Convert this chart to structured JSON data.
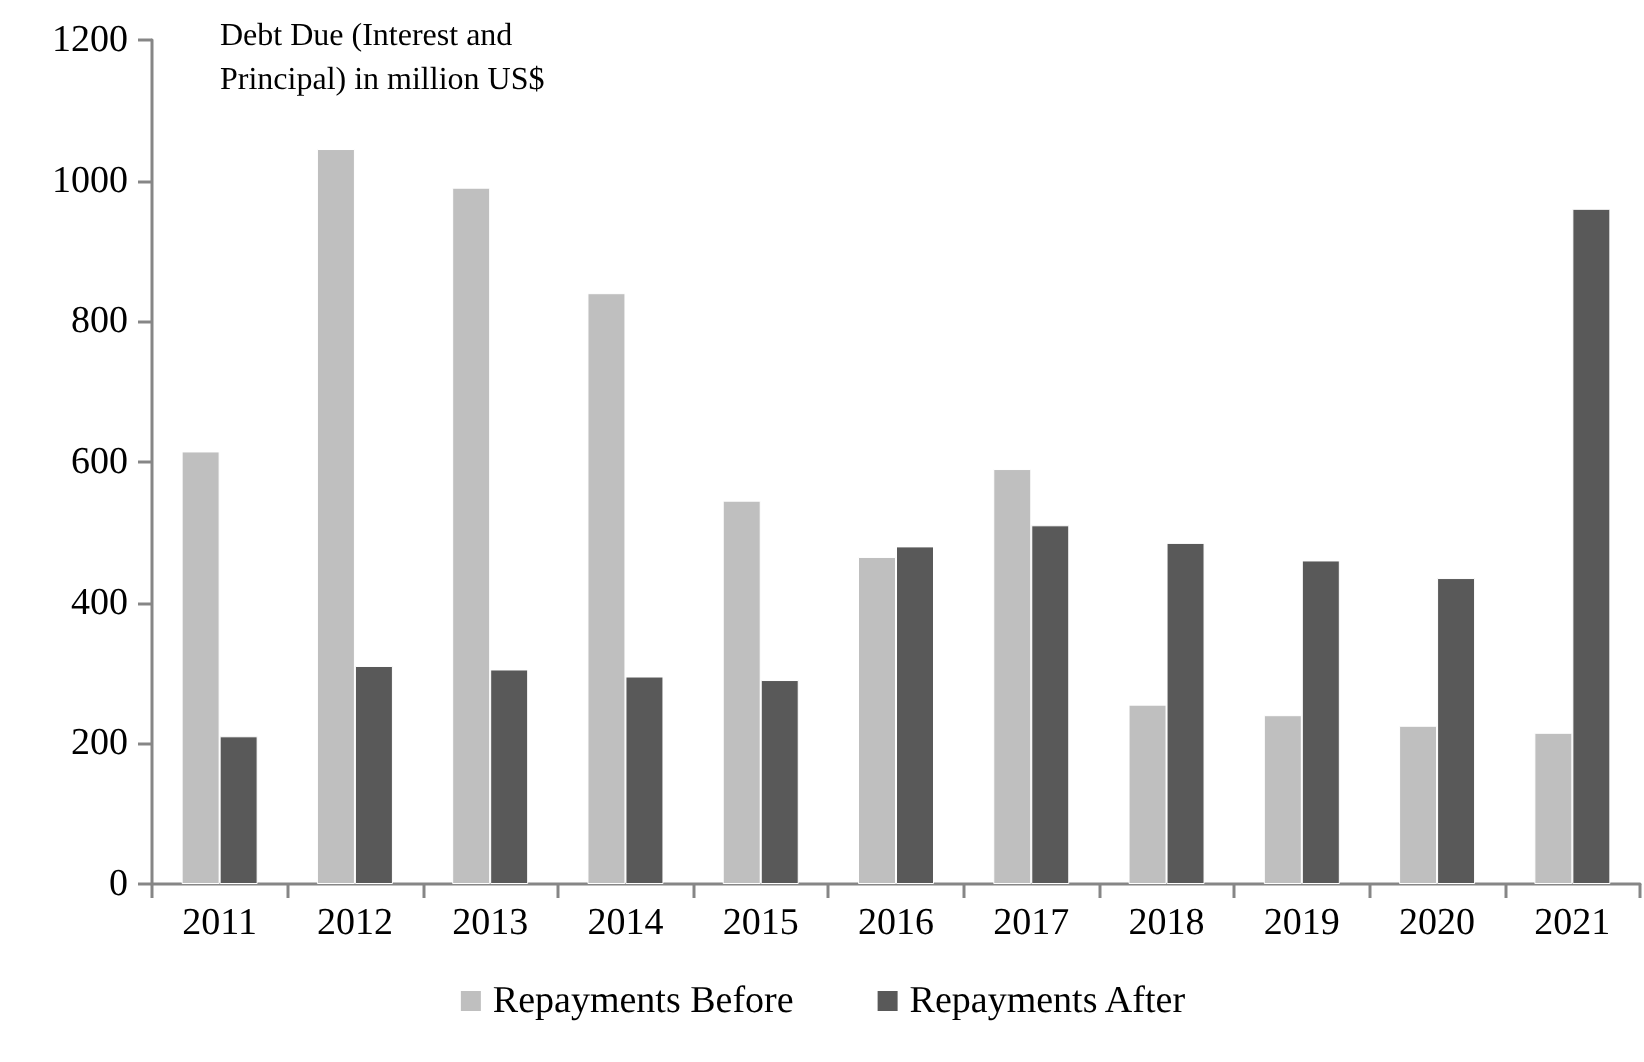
{
  "chart_data": {
    "type": "bar",
    "ylabel": "Debt Due (Interest and Principal) in million US$",
    "categories": [
      "2011",
      "2012",
      "2013",
      "2014",
      "2015",
      "2016",
      "2017",
      "2018",
      "2019",
      "2020",
      "2021"
    ],
    "series": [
      {
        "name": "Repayments Before",
        "color": "#bfbfbf",
        "values": [
          615,
          1045,
          990,
          840,
          545,
          465,
          590,
          255,
          240,
          225,
          215
        ]
      },
      {
        "name": "Repayments After",
        "color": "#595959",
        "values": [
          210,
          310,
          305,
          295,
          290,
          480,
          510,
          485,
          460,
          435,
          960
        ]
      }
    ],
    "ylim": [
      0,
      1200
    ],
    "yticks": [
      0,
      200,
      400,
      600,
      800,
      1000,
      1200
    ],
    "grid": false,
    "legend": "bottom"
  }
}
